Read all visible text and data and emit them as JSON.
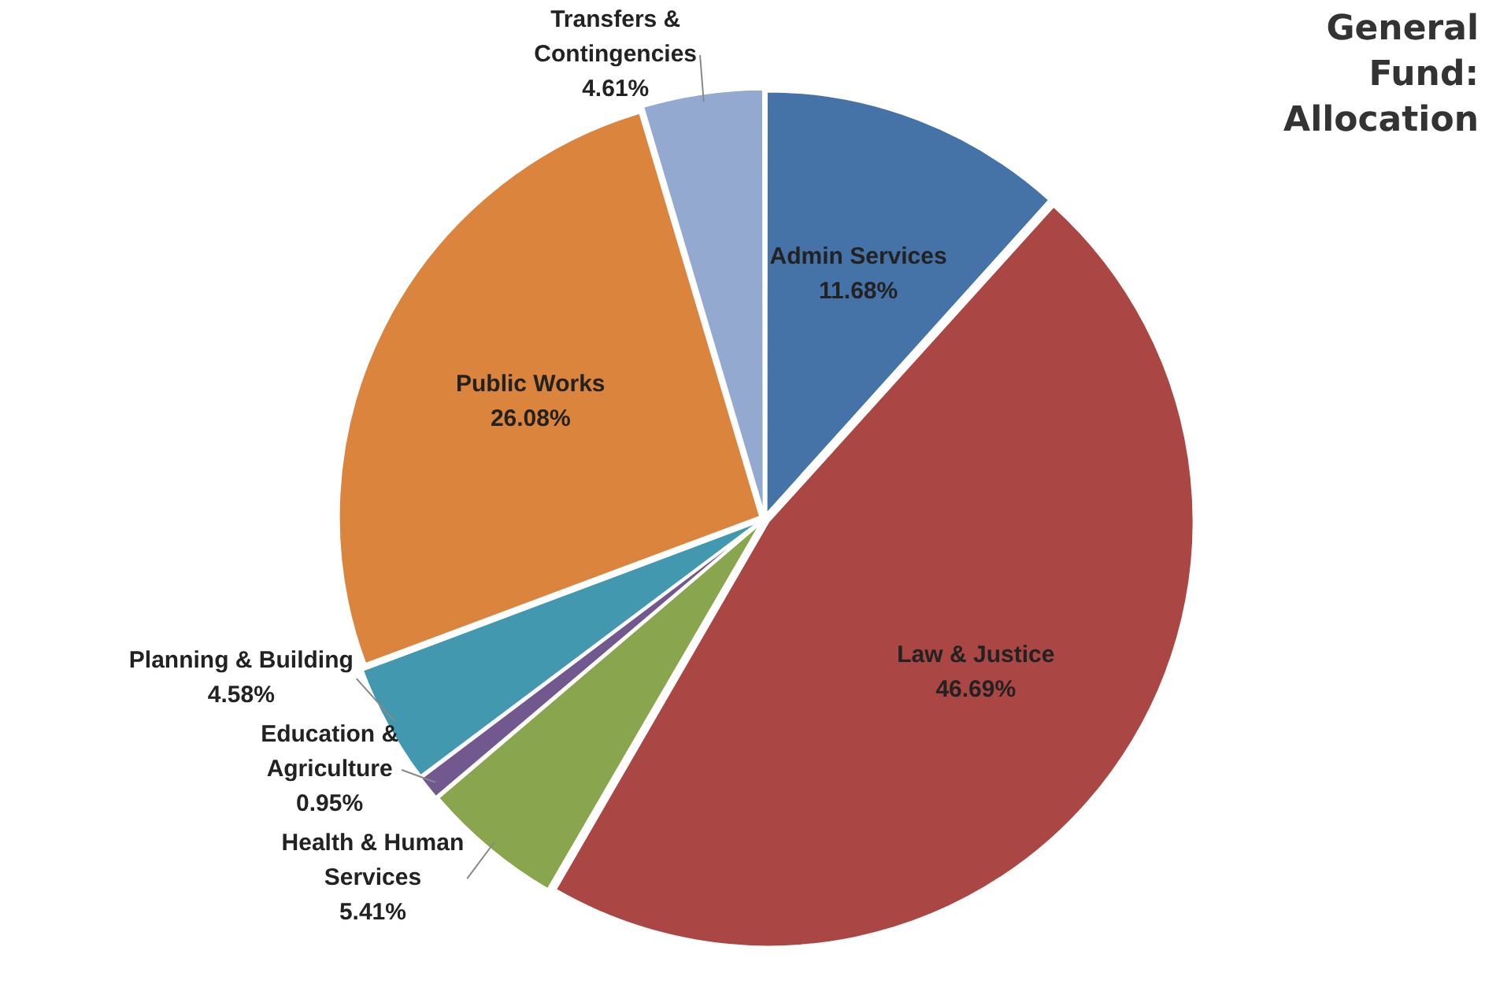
{
  "chart_data": {
    "type": "pie",
    "title": "General Fund: Allocation",
    "categories": [
      "Admin Services",
      "Law & Justice",
      "Health & Human Services",
      "Education & Agriculture",
      "Planning & Building",
      "Public Works",
      "Transfers & Contingencies"
    ],
    "values": [
      11.68,
      46.69,
      5.41,
      0.95,
      4.58,
      26.08,
      4.61
    ],
    "value_labels": [
      "11.68%",
      "46.69%",
      "5.41%",
      "0.95%",
      "4.58%",
      "26.08%",
      "4.61%"
    ],
    "colors": [
      "#4572a7",
      "#aa4643",
      "#89a54e",
      "#71588f",
      "#4198af",
      "#db843d",
      "#93a9cf"
    ],
    "legend": false
  }
}
